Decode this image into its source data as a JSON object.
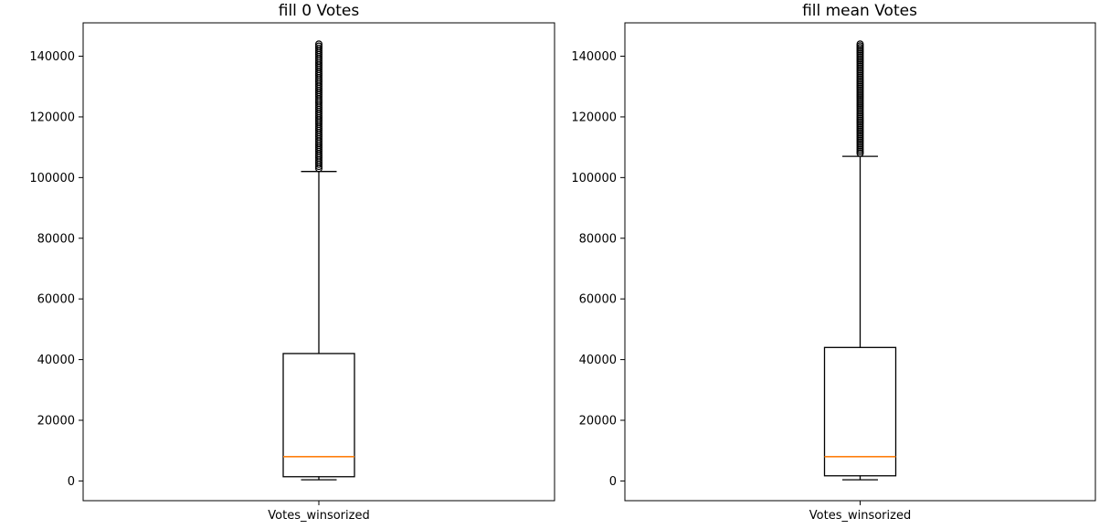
{
  "chart_data": [
    {
      "type": "box",
      "title": "fill 0 Votes",
      "category": "Votes_winsorized",
      "ylim": [
        -6500,
        151000
      ],
      "yticks": [
        0,
        20000,
        40000,
        60000,
        80000,
        100000,
        120000,
        140000
      ],
      "ytick_labels": [
        "0",
        "20000",
        "40000",
        "60000",
        "80000",
        "100000",
        "120000",
        "140000"
      ],
      "stats": {
        "whislo": 400,
        "q1": 1400,
        "median": 8000,
        "q3": 42000,
        "whishi": 102000
      },
      "fliers_range": [
        103000,
        144000
      ],
      "colors": {
        "median": "#ff7f0e",
        "box": "#000000"
      }
    },
    {
      "type": "box",
      "title": "fill mean Votes",
      "category": "Votes_winsorized",
      "ylim": [
        -6500,
        151000
      ],
      "yticks": [
        0,
        20000,
        40000,
        60000,
        80000,
        100000,
        120000,
        140000
      ],
      "ytick_labels": [
        "0",
        "20000",
        "40000",
        "60000",
        "80000",
        "100000",
        "120000",
        "140000"
      ],
      "stats": {
        "whislo": 400,
        "q1": 1700,
        "median": 8000,
        "q3": 44000,
        "whishi": 107000
      },
      "fliers_range": [
        108000,
        144000
      ],
      "colors": {
        "median": "#ff7f0e",
        "box": "#000000"
      }
    }
  ]
}
